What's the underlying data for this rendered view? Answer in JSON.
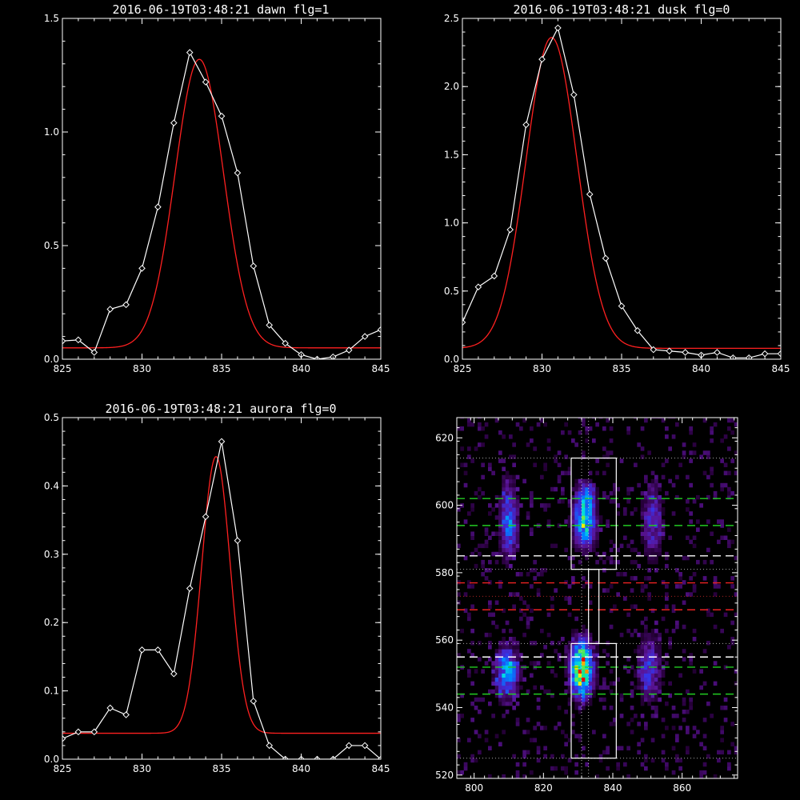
{
  "chart_data": [
    {
      "type": "line",
      "title": "2016-06-19T03:48:21 dawn flg=1",
      "xlim": [
        825,
        845
      ],
      "ylim": [
        0,
        1.5
      ],
      "xticks": [
        "825",
        "830",
        "835",
        "840",
        "845"
      ],
      "yticks": [
        "0.0",
        "0.5",
        "1.0",
        "1.5"
      ],
      "series": [
        {
          "kind": "data",
          "color": "#ffffff",
          "marker": "diamond",
          "x": [
            825,
            826,
            827,
            828,
            829,
            830,
            831,
            832,
            833,
            834,
            835,
            836,
            837,
            838,
            839,
            840,
            841,
            842,
            843,
            844,
            845
          ],
          "y": [
            0.08,
            0.085,
            0.03,
            0.22,
            0.24,
            0.4,
            0.67,
            1.04,
            1.35,
            1.22,
            1.07,
            0.82,
            0.41,
            0.15,
            0.07,
            0.02,
            0.0,
            0.01,
            0.04,
            0.1,
            0.13
          ]
        },
        {
          "kind": "fit",
          "color": "#ff2020",
          "amplitude": 1.27,
          "center": 833.6,
          "sigma": 1.52,
          "offset": 0.05
        }
      ]
    },
    {
      "type": "line",
      "title": "2016-06-19T03:48:21 dusk flg=0",
      "xlim": [
        825,
        845
      ],
      "ylim": [
        0,
        2.5
      ],
      "xticks": [
        "825",
        "830",
        "835",
        "840",
        "845"
      ],
      "yticks": [
        "0.0",
        "0.5",
        "1.0",
        "1.5",
        "2.0",
        "2.5"
      ],
      "series": [
        {
          "kind": "data",
          "color": "#ffffff",
          "marker": "diamond",
          "x": [
            825,
            826,
            827,
            828,
            829,
            830,
            831,
            832,
            833,
            834,
            835,
            836,
            837,
            838,
            839,
            840,
            841,
            842,
            843,
            844,
            845
          ],
          "y": [
            0.27,
            0.53,
            0.61,
            0.95,
            1.72,
            2.2,
            2.43,
            1.94,
            1.21,
            0.74,
            0.39,
            0.21,
            0.07,
            0.06,
            0.05,
            0.03,
            0.05,
            0.01,
            0.01,
            0.04,
            0.04
          ]
        },
        {
          "kind": "fit",
          "color": "#ff2020",
          "amplitude": 2.28,
          "center": 830.6,
          "sigma": 1.6,
          "offset": 0.08
        }
      ]
    },
    {
      "type": "line",
      "title": "2016-06-19T03:48:21 aurora flg=0",
      "xlim": [
        825,
        845
      ],
      "ylim": [
        0,
        0.5
      ],
      "xticks": [
        "825",
        "830",
        "835",
        "840",
        "845"
      ],
      "yticks": [
        "0.0",
        "0.1",
        "0.2",
        "0.3",
        "0.4",
        "0.5"
      ],
      "series": [
        {
          "kind": "data",
          "color": "#ffffff",
          "marker": "diamond",
          "x": [
            825,
            826,
            827,
            828,
            829,
            830,
            831,
            832,
            833,
            834,
            835,
            836,
            837,
            838,
            839,
            840,
            841,
            842,
            843,
            844,
            845
          ],
          "y": [
            0.03,
            0.04,
            0.04,
            0.075,
            0.065,
            0.16,
            0.16,
            0.125,
            0.25,
            0.355,
            0.465,
            0.32,
            0.085,
            0.02,
            0.0,
            0.0,
            0.0,
            0.0,
            0.02,
            0.02,
            0.0
          ]
        },
        {
          "kind": "fit",
          "color": "#ff2020",
          "amplitude": 0.405,
          "center": 834.65,
          "sigma": 0.9,
          "offset": 0.038
        }
      ]
    },
    {
      "type": "heatmap",
      "title": "",
      "xlim": [
        795,
        876
      ],
      "ylim": [
        519,
        626
      ],
      "xticks": [
        "800",
        "820",
        "840",
        "860"
      ],
      "yticks": [
        "520",
        "540",
        "560",
        "580",
        "600",
        "620"
      ],
      "blobs": [
        {
          "x": 830.5,
          "y": 551,
          "sx": 2.0,
          "sy": 5.0,
          "amp": 1.0
        },
        {
          "x": 831.5,
          "y": 595,
          "sx": 2.0,
          "sy": 5.0,
          "amp": 0.62
        },
        {
          "x": 831.5,
          "y": 602,
          "sx": 1.6,
          "sy": 2.5,
          "amp": 0.3
        },
        {
          "x": 809,
          "y": 550,
          "sx": 2.0,
          "sy": 4.5,
          "amp": 0.55
        },
        {
          "x": 809.5,
          "y": 595,
          "sx": 1.6,
          "sy": 7.0,
          "amp": 0.38
        },
        {
          "x": 850,
          "y": 551,
          "sx": 2.2,
          "sy": 6.0,
          "amp": 0.28
        },
        {
          "x": 851,
          "y": 595,
          "sx": 1.8,
          "sy": 7.0,
          "amp": 0.25
        }
      ],
      "boxes": [
        {
          "x": [
            828,
            841
          ],
          "y": [
            525,
            559
          ]
        },
        {
          "x": [
            828,
            841
          ],
          "y": [
            581,
            614
          ]
        }
      ],
      "connector": {
        "x": [
          833,
          836
        ],
        "y": [
          559,
          581
        ]
      },
      "vlines_dotted": [
        831,
        833
      ],
      "hlines": [
        {
          "y": 614,
          "color": "#aaaaaa",
          "style": "dotted"
        },
        {
          "y": 602,
          "color": "#22cc22",
          "style": "dashed"
        },
        {
          "y": 594,
          "color": "#22cc22",
          "style": "dashed"
        },
        {
          "y": 585,
          "color": "#ffffff",
          "style": "dashed"
        },
        {
          "y": 581,
          "color": "#aaaaaa",
          "style": "dotted"
        },
        {
          "y": 577,
          "color": "#ee2222",
          "style": "dashed"
        },
        {
          "y": 573,
          "color": "#aa2222",
          "style": "dotted"
        },
        {
          "y": 569,
          "color": "#ee2222",
          "style": "dashed"
        },
        {
          "y": 559,
          "color": "#aaaaaa",
          "style": "dotted"
        },
        {
          "y": 555,
          "color": "#ffffff",
          "style": "dashed"
        },
        {
          "y": 552,
          "color": "#22cc22",
          "style": "dashed"
        },
        {
          "y": 544,
          "color": "#22cc22",
          "style": "dashed"
        },
        {
          "y": 525,
          "color": "#aaaaaa",
          "style": "dotted"
        }
      ]
    }
  ]
}
